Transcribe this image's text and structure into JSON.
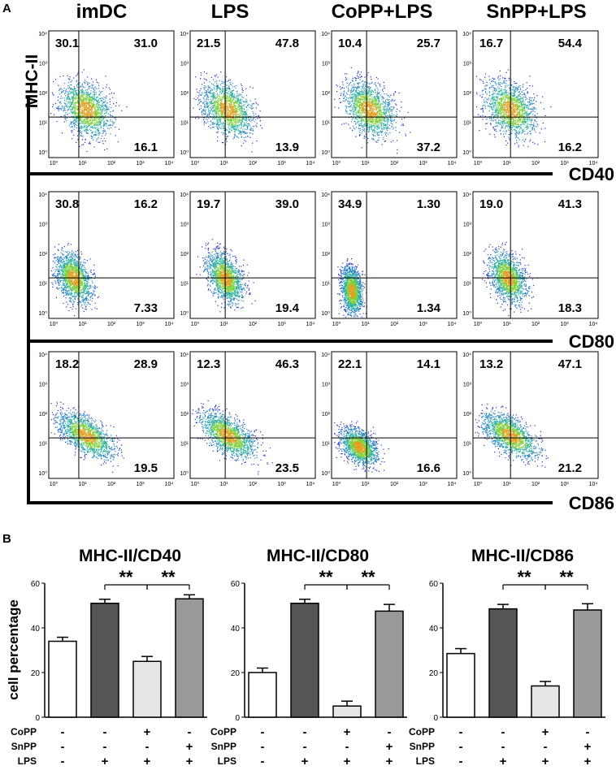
{
  "panel_a_label": "A",
  "panel_b_label": "B",
  "y_marker": "MHC-II",
  "conditions": [
    "imDC",
    "LPS",
    "CoPP+LPS",
    "SnPP+LPS"
  ],
  "markers": [
    "CD40",
    "CD80",
    "CD86"
  ],
  "flow_axis_ticks": [
    "10⁰",
    "10¹",
    "10²",
    "10³",
    "10⁴"
  ],
  "flow_quadrants": [
    [
      [
        "30.1",
        "31.0",
        "16.1"
      ],
      [
        "21.5",
        "47.8",
        "13.9"
      ],
      [
        "10.4",
        "25.7",
        "37.2"
      ],
      [
        "16.7",
        "54.4",
        "16.2"
      ]
    ],
    [
      [
        "30.8",
        "16.2",
        "7.33"
      ],
      [
        "19.7",
        "39.0",
        "19.4"
      ],
      [
        "34.9",
        "1.30",
        "1.34"
      ],
      [
        "19.0",
        "41.3",
        "18.3"
      ]
    ],
    [
      [
        "18.2",
        "28.9",
        "19.5"
      ],
      [
        "12.3",
        "46.3",
        "23.5"
      ],
      [
        "22.1",
        "14.1",
        "16.6"
      ],
      [
        "13.2",
        "47.1",
        "21.2"
      ]
    ]
  ],
  "ylabel_b": "cell percentage",
  "treatment_labels": [
    "CoPP",
    "SnPP",
    "LPS"
  ],
  "treatment_signs": [
    [
      "-",
      "-",
      "+",
      "-"
    ],
    [
      "-",
      "-",
      "-",
      "+"
    ],
    [
      "-",
      "+",
      "+",
      "+"
    ]
  ],
  "significance": "**",
  "colors": {
    "bar_fills": [
      "#ffffff",
      "#555555",
      "#e6e6e6",
      "#999999"
    ],
    "bar_stroke": "#000000"
  },
  "chart_data": [
    {
      "type": "bar",
      "title": "MHC-II/CD40",
      "ylabel": "cell percentage",
      "ylim": [
        0,
        60
      ],
      "yticks": [
        0,
        20,
        40,
        60
      ],
      "categories": [
        "imDC",
        "LPS",
        "CoPP+LPS",
        "SnPP+LPS"
      ],
      "values": [
        34,
        51,
        25,
        53
      ],
      "errors": [
        1.8,
        1.8,
        2.2,
        1.8
      ],
      "significance": [
        {
          "from": 1,
          "to": 2,
          "label": "**"
        },
        {
          "from": 2,
          "to": 3,
          "label": "**"
        }
      ]
    },
    {
      "type": "bar",
      "title": "MHC-II/CD80",
      "ylabel": "cell percentage",
      "ylim": [
        0,
        60
      ],
      "yticks": [
        0,
        20,
        40,
        60
      ],
      "categories": [
        "imDC",
        "LPS",
        "CoPP+LPS",
        "SnPP+LPS"
      ],
      "values": [
        20,
        51,
        5,
        47.5
      ],
      "errors": [
        2.0,
        1.8,
        2.2,
        3.0
      ],
      "significance": [
        {
          "from": 1,
          "to": 2,
          "label": "**"
        },
        {
          "from": 2,
          "to": 3,
          "label": "**"
        }
      ]
    },
    {
      "type": "bar",
      "title": "MHC-II/CD86",
      "ylabel": "cell percentage",
      "ylim": [
        0,
        60
      ],
      "yticks": [
        0,
        20,
        40,
        60
      ],
      "categories": [
        "imDC",
        "LPS",
        "CoPP+LPS",
        "SnPP+LPS"
      ],
      "values": [
        28.5,
        48.5,
        14,
        48
      ],
      "errors": [
        2.2,
        2.0,
        2.0,
        2.8
      ],
      "significance": [
        {
          "from": 1,
          "to": 2,
          "label": "**"
        },
        {
          "from": 2,
          "to": 3,
          "label": "**"
        }
      ]
    }
  ]
}
